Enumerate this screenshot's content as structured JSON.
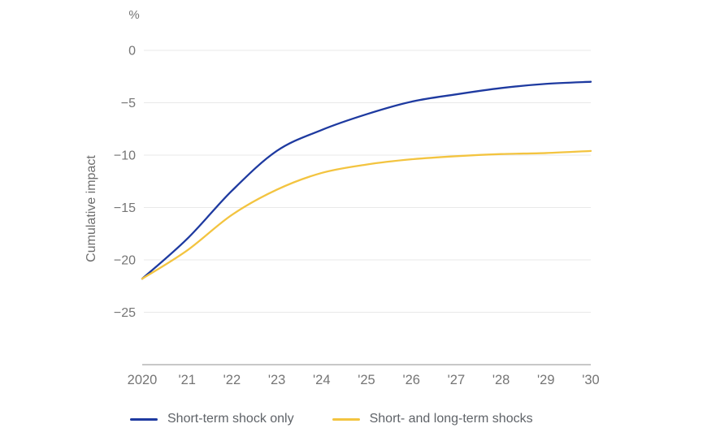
{
  "chart_data": {
    "type": "line",
    "title": "",
    "unit_label": "%",
    "ylabel": "Cumulative impact",
    "xlabel": "",
    "x": [
      2020,
      2021,
      2022,
      2023,
      2024,
      2025,
      2026,
      2027,
      2028,
      2029,
      2030
    ],
    "x_tick_labels": [
      "2020",
      "'21",
      "'22",
      "'23",
      "'24",
      "'25",
      "'26",
      "'27",
      "'28",
      "'29",
      "'30"
    ],
    "yticks": [
      0,
      -5,
      -10,
      -15,
      -20,
      -25
    ],
    "ylim": [
      -30,
      0
    ],
    "grid": "horizontal-only",
    "legend_position": "bottom",
    "series": [
      {
        "name": "Short-term shock only",
        "color": "#1e3aa0",
        "values": [
          -21.8,
          -18.0,
          -13.4,
          -9.6,
          -7.6,
          -6.1,
          -4.9,
          -4.2,
          -3.6,
          -3.2,
          -3.0
        ]
      },
      {
        "name": "Short- and long-term shocks",
        "color": "#f3c440",
        "values": [
          -21.8,
          -19.1,
          -15.7,
          -13.3,
          -11.7,
          -10.9,
          -10.4,
          -10.1,
          -9.9,
          -9.8,
          -9.6
        ]
      }
    ],
    "colors": {
      "tick_text": "#757575",
      "axis_title_text": "#6e6e6e",
      "legend_text": "#5f6368",
      "gridline": "#e9e9e9",
      "axis_line": "#b5b5b5",
      "background": "#ffffff"
    }
  }
}
